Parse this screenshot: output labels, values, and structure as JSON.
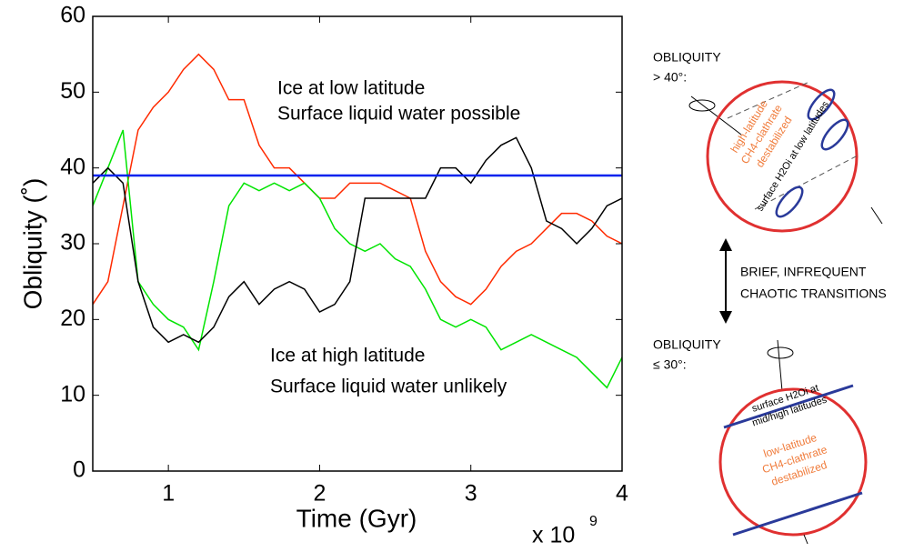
{
  "chart_data": {
    "type": "line",
    "xlabel": "Time (Gyr)",
    "ylabel": "Obliquity (˚)",
    "x_multiplier": {
      "base": "x 10",
      "exponent": "9"
    },
    "xlim": [
      0.5,
      4
    ],
    "ylim": [
      0,
      60
    ],
    "xticks": [
      1,
      2,
      3,
      4
    ],
    "yticks": [
      0,
      10,
      20,
      30,
      40,
      50,
      60
    ],
    "grid": false,
    "annotations": [
      "Ice at low latitude",
      "Surface liquid water possible",
      "Ice at high latitude",
      "Surface liquid water unlikely"
    ],
    "series": [
      {
        "color": "#ff2a00",
        "x": [
          0.5,
          0.6,
          0.7,
          0.8,
          0.9,
          1.0,
          1.1,
          1.2,
          1.3,
          1.4,
          1.5,
          1.6,
          1.7,
          1.8,
          1.9,
          2.0,
          2.1,
          2.2,
          2.3,
          2.4,
          2.5,
          2.6,
          2.7,
          2.8,
          2.9,
          3.0,
          3.1,
          3.2,
          3.3,
          3.4,
          3.5,
          3.6,
          3.7,
          3.8,
          3.9,
          4.0
        ],
        "values": [
          22,
          25,
          35,
          45,
          48,
          50,
          53,
          55,
          53,
          49,
          49,
          43,
          40,
          40,
          38,
          36,
          36,
          38,
          38,
          38,
          37,
          36,
          29,
          25,
          23,
          22,
          24,
          27,
          29,
          30,
          32,
          34,
          34,
          33,
          31,
          30
        ]
      },
      {
        "color": "#00e400",
        "x": [
          0.5,
          0.6,
          0.7,
          0.8,
          0.9,
          1.0,
          1.1,
          1.2,
          1.3,
          1.4,
          1.5,
          1.6,
          1.7,
          1.8,
          1.9,
          2.0,
          2.1,
          2.2,
          2.3,
          2.4,
          2.5,
          2.6,
          2.7,
          2.8,
          2.9,
          3.0,
          3.1,
          3.2,
          3.3,
          3.4,
          3.5,
          3.6,
          3.7,
          3.8,
          3.9,
          4.0
        ],
        "values": [
          35,
          40,
          45,
          25,
          22,
          20,
          19,
          16,
          25,
          35,
          38,
          37,
          38,
          37,
          38,
          36,
          32,
          30,
          29,
          30,
          28,
          27,
          24,
          20,
          19,
          20,
          19,
          16,
          17,
          18,
          17,
          16,
          15,
          13,
          11,
          15
        ]
      },
      {
        "color": "#000000",
        "x": [
          0.5,
          0.6,
          0.7,
          0.8,
          0.9,
          1.0,
          1.1,
          1.2,
          1.3,
          1.4,
          1.5,
          1.6,
          1.7,
          1.8,
          1.9,
          2.0,
          2.1,
          2.2,
          2.3,
          2.4,
          2.5,
          2.6,
          2.7,
          2.8,
          2.9,
          3.0,
          3.1,
          3.2,
          3.3,
          3.4,
          3.5,
          3.6,
          3.7,
          3.8,
          3.9,
          4.0
        ],
        "values": [
          38,
          40,
          38,
          25,
          19,
          17,
          18,
          17,
          19,
          23,
          25,
          22,
          24,
          25,
          24,
          21,
          22,
          25,
          36,
          36,
          36,
          36,
          36,
          40,
          40,
          38,
          41,
          43,
          44,
          40,
          33,
          32,
          30,
          32,
          35,
          36
        ]
      },
      {
        "color": "#0022ee",
        "x": [
          0.5,
          4
        ],
        "values": [
          39,
          39
        ]
      }
    ]
  },
  "diagram": {
    "top": {
      "heading": "OBLIQUITY",
      "condition": "> 40°:",
      "orange": [
        "high-latitude",
        "CH4-clathrate",
        "destabilized"
      ],
      "ice": "surface H2Oi at low latitudes"
    },
    "middle": [
      "BRIEF, INFREQUENT",
      "CHAOTIC TRANSITIONS"
    ],
    "bottom": {
      "heading": "OBLIQUITY",
      "condition": "≤ 30°:",
      "ice": [
        "surface H2Oi at",
        "mid/high latitudes"
      ],
      "orange": [
        "low-latitude",
        "CH4-clathrate",
        "destabilized"
      ]
    }
  }
}
